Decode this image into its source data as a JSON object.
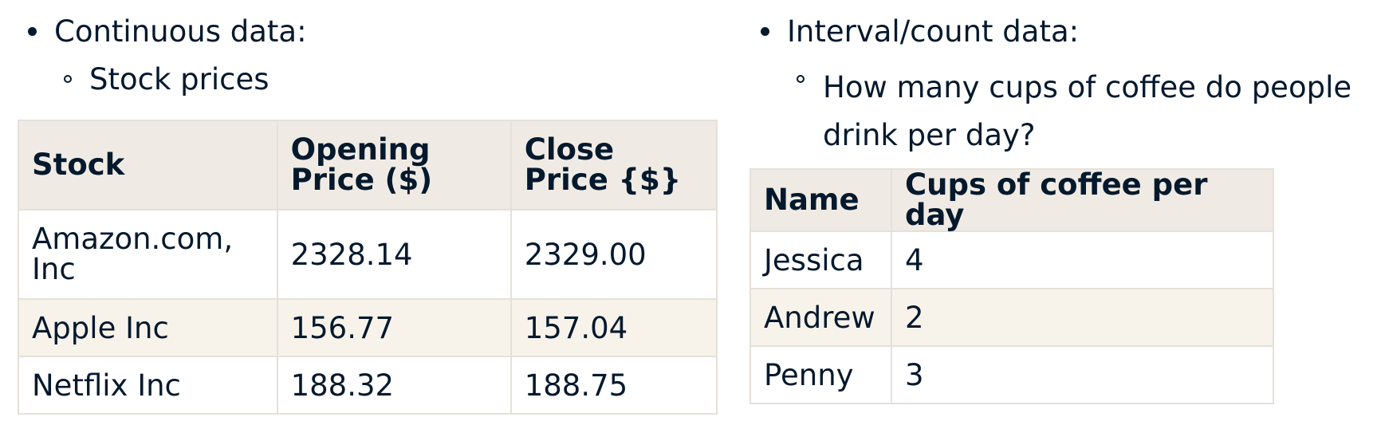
{
  "left": {
    "bullet": "Continuous data:",
    "sub_bullet": "Stock prices",
    "table": {
      "headers": [
        "Stock",
        "Opening Price ($)",
        "Close Price {$}"
      ],
      "rows": [
        [
          "Amazon.com, Inc",
          "2328.14",
          "2329.00"
        ],
        [
          "Apple Inc",
          "156.77",
          "157.04"
        ],
        [
          "Netflix Inc",
          "188.32",
          "188.75"
        ]
      ]
    }
  },
  "right": {
    "bullet": "Interval/count data:",
    "sub_bullet": "How many cups of coffee do people drink per day?",
    "table": {
      "headers": [
        "Name",
        "Cups of coffee per day"
      ],
      "rows": [
        [
          "Jessica",
          "4"
        ],
        [
          "Andrew",
          "2"
        ],
        [
          "Penny",
          "3"
        ]
      ]
    }
  }
}
